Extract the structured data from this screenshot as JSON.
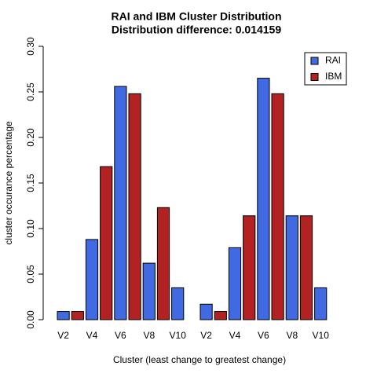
{
  "chart_data": {
    "type": "bar",
    "title": "RAI and IBM Cluster Distribution",
    "subtitle": "Distribution difference: 0.014159",
    "x_label": "Cluster (least change to greatest change)",
    "y_label": "cluster occurance percentage",
    "categories": [
      "V2",
      "V4",
      "V6",
      "V8",
      "V10",
      "V2",
      "V4",
      "V6",
      "V8",
      "V10"
    ],
    "series": [
      {
        "name": "RAI",
        "color": "#4169e1",
        "values": [
          0.009,
          0.088,
          0.256,
          0.062,
          0.035,
          0.017,
          0.079,
          0.265,
          0.114,
          0.035
        ]
      },
      {
        "name": "IBM",
        "color": "#b22222",
        "values": [
          0.009,
          0.168,
          0.248,
          0.123,
          0,
          0.009,
          0.114,
          0.248,
          0.114,
          0
        ]
      }
    ],
    "ylim": [
      0,
      0.3
    ],
    "yticks": [
      {
        "value": 0,
        "label": "0.00"
      },
      {
        "value": 0.05,
        "label": "0.05"
      },
      {
        "value": 0.1,
        "label": "0.10"
      },
      {
        "value": 0.15,
        "label": "0.15"
      },
      {
        "value": 0.2,
        "label": "0.20"
      },
      {
        "value": 0.25,
        "label": "0.25"
      },
      {
        "value": 0.3,
        "label": "0.30"
      }
    ],
    "legend": "topright"
  }
}
